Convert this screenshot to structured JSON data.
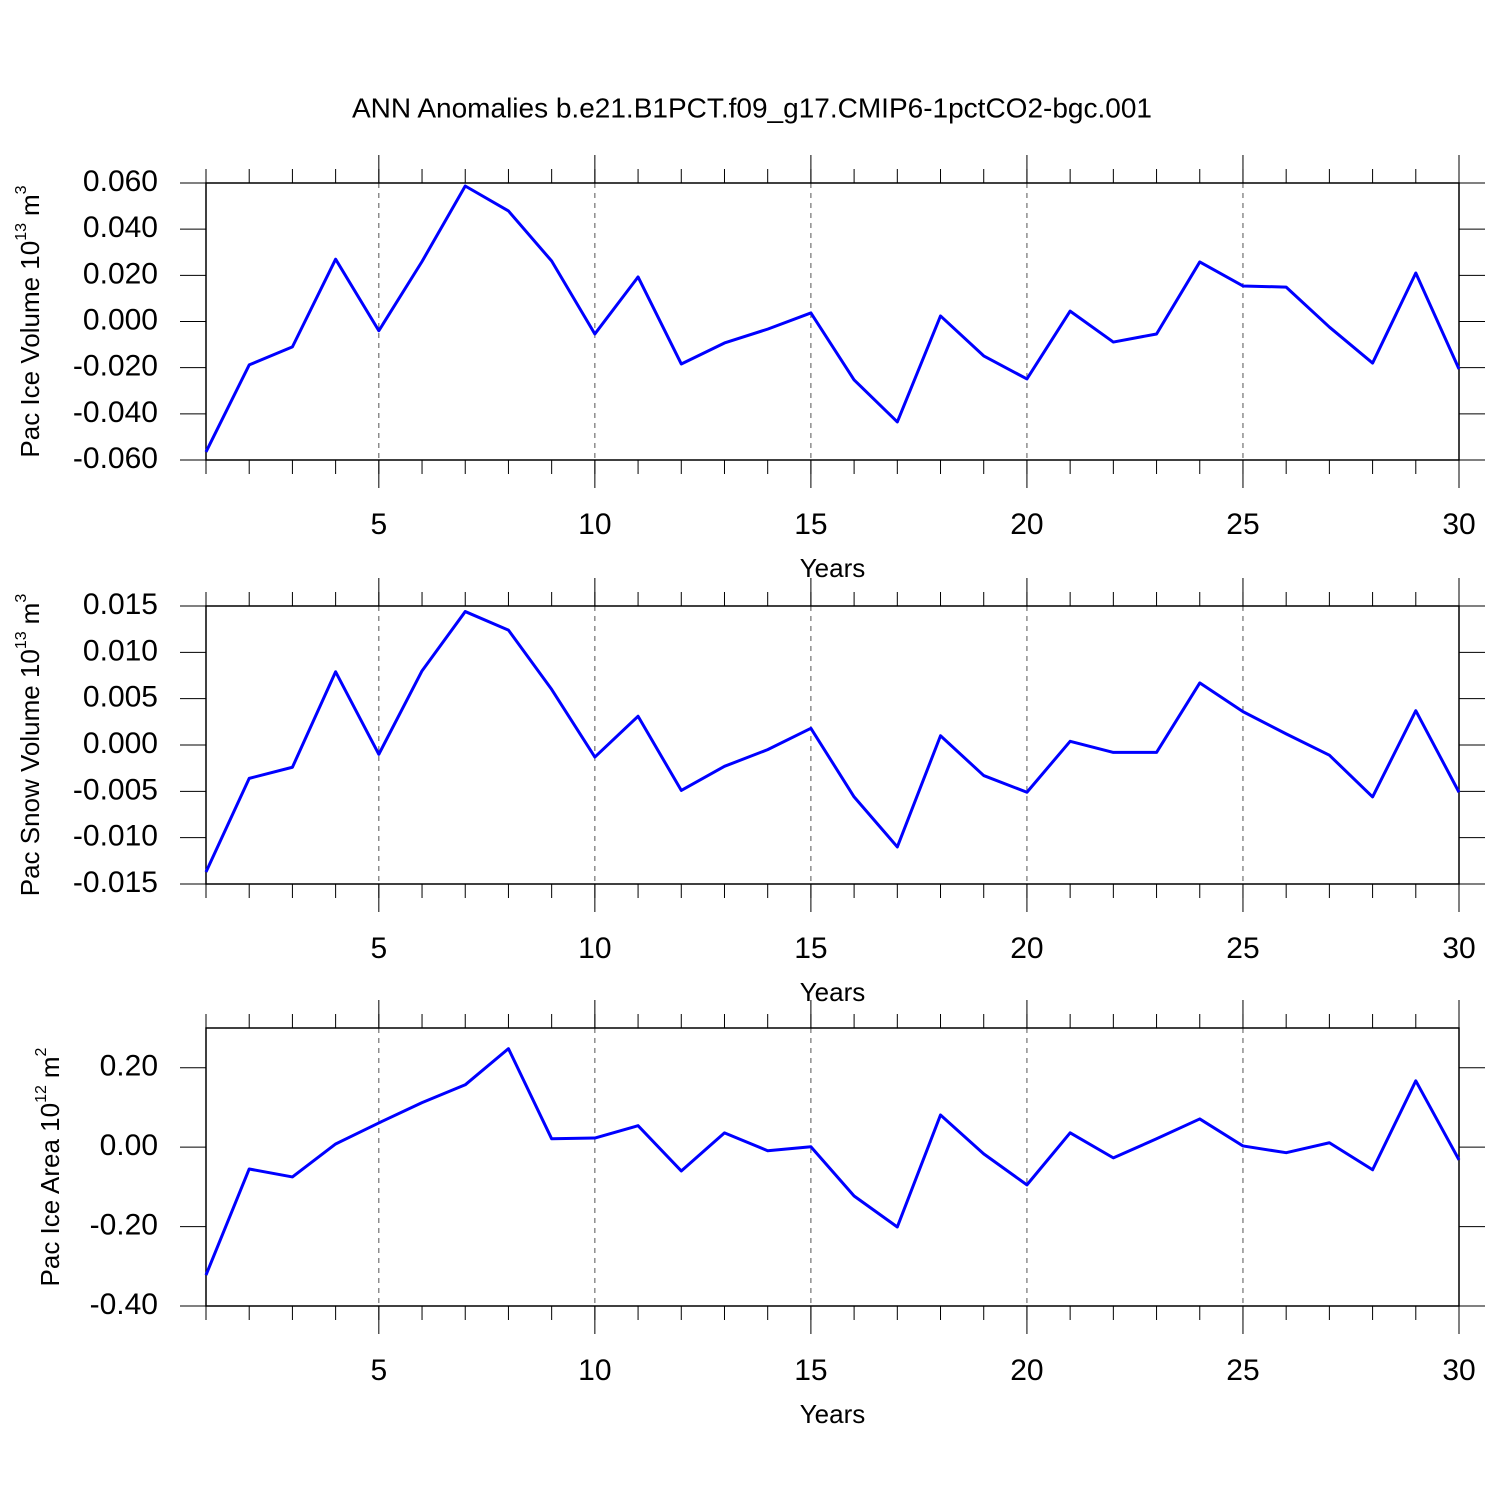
{
  "chart_data": [
    {
      "type": "line",
      "title": "ANN Anomalies b.e21.B1PCT.f09_g17.CMIP6-1pctCO2-bgc.001",
      "ylabel": {
        "text": "Pac Ice Volume 10",
        "exponent": "13",
        "unit": "m",
        "unit_exponent": "3"
      },
      "xlabel": "Years",
      "x": [
        1,
        2,
        3,
        4,
        5,
        6,
        7,
        8,
        9,
        10,
        11,
        12,
        13,
        14,
        15,
        16,
        17,
        18,
        19,
        20,
        21,
        22,
        23,
        24,
        25,
        26,
        27,
        28,
        29,
        30
      ],
      "values": [
        -0.0565,
        -0.0188,
        -0.011,
        0.027,
        -0.004,
        0.026,
        0.0587,
        0.0479,
        0.0262,
        -0.0054,
        0.0193,
        -0.0184,
        -0.0093,
        -0.0033,
        0.0037,
        -0.0253,
        -0.0435,
        0.0024,
        -0.0149,
        -0.0249,
        0.0045,
        -0.0089,
        -0.0054,
        0.0258,
        0.0154,
        0.0149,
        -0.0024,
        -0.018,
        0.021,
        -0.0206
      ],
      "color": "#0000ff",
      "xlim": [
        1,
        30
      ],
      "xticks": [
        5,
        10,
        15,
        20,
        25,
        30
      ],
      "ylim": [
        -0.06,
        0.06
      ],
      "yticks": [
        {
          "value": -0.06,
          "label": "-0.060"
        },
        {
          "value": -0.04,
          "label": "-0.040"
        },
        {
          "value": -0.02,
          "label": "-0.020"
        },
        {
          "value": 0,
          "label": "0.000"
        },
        {
          "value": 0.02,
          "label": "0.020"
        },
        {
          "value": 0.04,
          "label": "0.040"
        },
        {
          "value": 0.06,
          "label": "0.060"
        }
      ],
      "grid": true
    },
    {
      "type": "line",
      "ylabel": {
        "text": "Pac Snow Volume 10",
        "exponent": "13",
        "unit": "m",
        "unit_exponent": "3"
      },
      "xlabel": "Years",
      "x": [
        1,
        2,
        3,
        4,
        5,
        6,
        7,
        8,
        9,
        10,
        11,
        12,
        13,
        14,
        15,
        16,
        17,
        18,
        19,
        20,
        21,
        22,
        23,
        24,
        25,
        26,
        27,
        28,
        29,
        30
      ],
      "values": [
        -0.0137,
        -0.0036,
        -0.0024,
        0.0079,
        -0.001,
        0.008,
        0.0144,
        0.0124,
        0.006,
        -0.0013,
        0.0031,
        -0.0049,
        -0.0023,
        -0.0005,
        0.0018,
        -0.0056,
        -0.011,
        0.001,
        -0.0033,
        -0.0051,
        0.0004,
        -0.0008,
        -0.0008,
        0.0067,
        0.0036,
        0.0012,
        -0.0011,
        -0.0056,
        0.0037,
        -0.0051
      ],
      "color": "#0000ff",
      "xlim": [
        1,
        30
      ],
      "xticks": [
        5,
        10,
        15,
        20,
        25,
        30
      ],
      "ylim": [
        -0.015,
        0.015
      ],
      "yticks": [
        {
          "value": -0.015,
          "label": "-0.015"
        },
        {
          "value": -0.01,
          "label": "-0.010"
        },
        {
          "value": -0.005,
          "label": "-0.005"
        },
        {
          "value": 0,
          "label": "0.000"
        },
        {
          "value": 0.005,
          "label": "0.005"
        },
        {
          "value": 0.01,
          "label": "0.010"
        },
        {
          "value": 0.015,
          "label": "0.015"
        }
      ],
      "grid": true
    },
    {
      "type": "line",
      "ylabel": {
        "text": "Pac Ice Area 10",
        "exponent": "12",
        "unit": "m",
        "unit_exponent": "2"
      },
      "xlabel": "Years",
      "x": [
        1,
        2,
        3,
        4,
        5,
        6,
        7,
        8,
        9,
        10,
        11,
        12,
        13,
        14,
        15,
        16,
        17,
        18,
        19,
        20,
        21,
        22,
        23,
        24,
        25,
        26,
        27,
        28,
        29,
        30
      ],
      "values": [
        -0.322,
        -0.055,
        -0.075,
        0.008,
        0.061,
        0.112,
        0.157,
        0.248,
        0.021,
        0.023,
        0.054,
        -0.06,
        0.036,
        -0.009,
        0.001,
        -0.123,
        -0.201,
        0.081,
        -0.017,
        -0.095,
        0.036,
        -0.027,
        0.021,
        0.071,
        0.003,
        -0.014,
        0.011,
        -0.057,
        0.167,
        -0.032
      ],
      "color": "#0000ff",
      "xlim": [
        1,
        30
      ],
      "xticks": [
        5,
        10,
        15,
        20,
        25,
        30
      ],
      "ylim": [
        -0.4,
        0.3
      ],
      "yticks": [
        {
          "value": -0.4,
          "label": "-0.40"
        },
        {
          "value": -0.2,
          "label": "-0.20"
        },
        {
          "value": 0,
          "label": "0.00"
        },
        {
          "value": 0.2,
          "label": "0.20"
        }
      ],
      "grid": true
    }
  ]
}
